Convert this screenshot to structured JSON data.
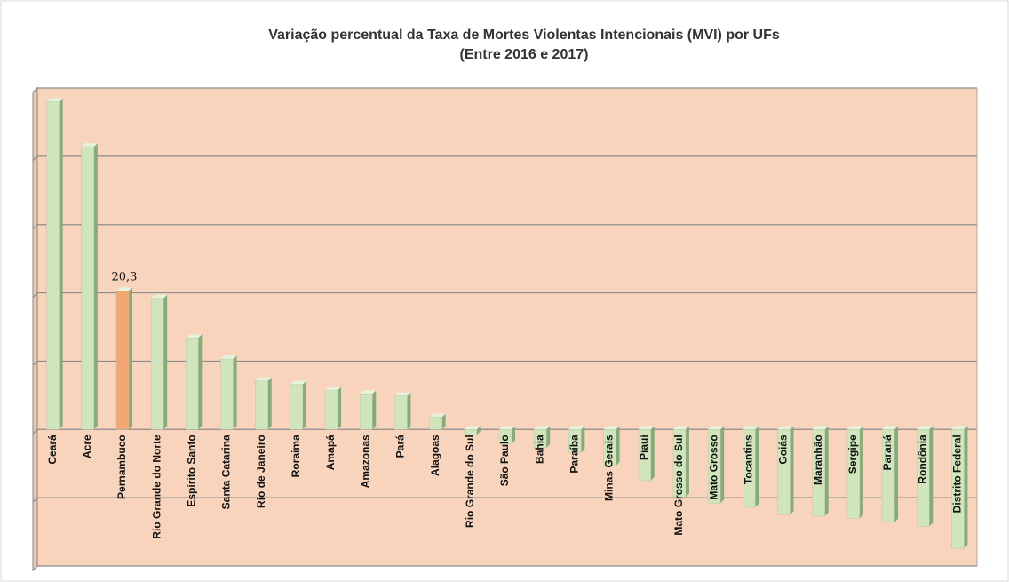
{
  "chart_data": {
    "type": "bar3d",
    "title": "Variação  percentual da Taxa de Mortes Violentas Intencionais (MVI) por UFs",
    "subtitle": "(Entre 2016 e 2017)",
    "categories": [
      "Ceará",
      "Acre",
      "Pernambuco",
      "Rio Grande do Norte",
      "Espírito Santo",
      "Santa Catarina",
      "Rio de Janeiro",
      "Roraima",
      "Amapá",
      "Amazonas",
      "Pará",
      "Alagoas",
      "Rio Grande do Sul",
      "São Paulo",
      "Bahia",
      "Paraíba",
      "Minas Gerais",
      "Piauí",
      "Mato Grosso do Sul",
      "Mato Grosso",
      "Tocantins",
      "Goiás",
      "Maranhão",
      "Sergipe",
      "Paraná",
      "Rondônia",
      "Distrito Federal"
    ],
    "values": [
      48.0,
      41.4,
      20.3,
      19.2,
      13.4,
      10.3,
      7.1,
      6.6,
      5.7,
      5.2,
      4.9,
      1.8,
      -0.8,
      -2.1,
      -2.7,
      -3.4,
      -5.3,
      -7.5,
      -9.9,
      -10.8,
      -11.4,
      -12.5,
      -12.7,
      -13.0,
      -13.6,
      -14.2,
      -17.4
    ],
    "value_labels": [
      null,
      null,
      "20,3",
      null,
      null,
      null,
      null,
      null,
      null,
      null,
      null,
      null,
      null,
      null,
      null,
      null,
      null,
      null,
      null,
      null,
      null,
      null,
      null,
      null,
      null,
      null,
      null
    ],
    "color": "#cfe5bc",
    "highlight": {
      "index": 2,
      "color": "#f2a673"
    },
    "ylim": [
      -20,
      50
    ],
    "yticks": [
      -20,
      -10,
      0,
      10,
      20,
      30,
      40,
      50
    ],
    "grid": true
  }
}
